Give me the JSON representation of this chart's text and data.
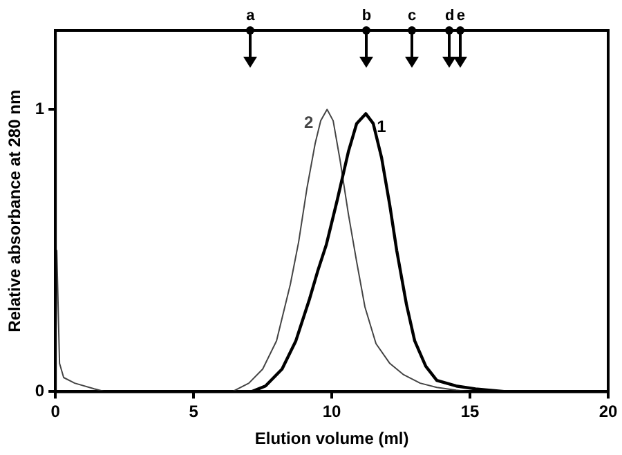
{
  "chart_data": {
    "type": "line",
    "xlabel": "Elution volume (ml)",
    "ylabel": "Relative absorbance at 280 nm",
    "xlim": [
      0,
      20
    ],
    "xticks": [
      0,
      5,
      10,
      15,
      20
    ],
    "ylim": [
      0,
      1.28
    ],
    "yticks": [
      0,
      1
    ],
    "marker": "none",
    "line_style": "solid",
    "legend": false,
    "series": [
      {
        "name": "1",
        "color": "#000000",
        "x": [
          7.1,
          7.6,
          8.2,
          8.7,
          9.2,
          9.5,
          9.8,
          10.2,
          10.6,
          10.9,
          11.23,
          11.5,
          11.8,
          12.1,
          12.35,
          12.7,
          13,
          13.4,
          13.8,
          14.5,
          15.2,
          16.3
        ],
        "values": [
          0,
          0.02,
          0.08,
          0.18,
          0.33,
          0.43,
          0.52,
          0.68,
          0.85,
          0.95,
          0.985,
          0.95,
          0.83,
          0.66,
          0.5,
          0.31,
          0.18,
          0.09,
          0.04,
          0.02,
          0.01,
          0
        ]
      },
      {
        "name": "2",
        "color": "#444444",
        "x": [
          0,
          0.05,
          0.15,
          0.3,
          0.7,
          1.4,
          1.8,
          6.4,
          7,
          7.5,
          8,
          8.5,
          8.8,
          9.1,
          9.4,
          9.6,
          9.83,
          10.05,
          10.3,
          10.6,
          10.9,
          11.2,
          11.6,
          12.1,
          12.6,
          13.2,
          13.8,
          14.5,
          15
        ],
        "values": [
          0,
          0.5,
          0.1,
          0.05,
          0.03,
          0.01,
          0,
          0,
          0.03,
          0.08,
          0.18,
          0.38,
          0.53,
          0.72,
          0.88,
          0.96,
          1.0,
          0.96,
          0.82,
          0.63,
          0.46,
          0.3,
          0.17,
          0.1,
          0.06,
          0.03,
          0.015,
          0.005,
          0
        ]
      }
    ],
    "annotations": [
      {
        "text": "a",
        "x": 7.06,
        "y": 1.28
      },
      {
        "text": "b",
        "x": 11.26,
        "y": 1.28
      },
      {
        "text": "c",
        "x": 12.9,
        "y": 1.28
      },
      {
        "text": "d",
        "x": 14.27,
        "y": 1.28
      },
      {
        "text": "e",
        "x": 14.67,
        "y": 1.28
      }
    ]
  }
}
